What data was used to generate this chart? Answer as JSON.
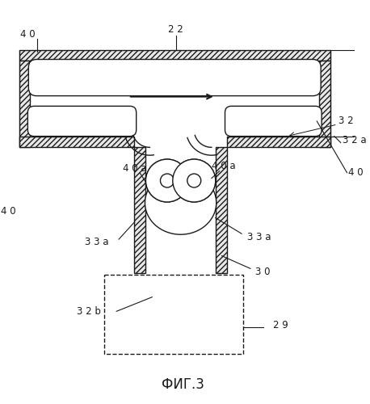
{
  "title": "ФИГ.3",
  "bg_color": "#ffffff",
  "line_color": "#1a1a1a",
  "labels": {
    "40_top_left": "4 0",
    "22": "2 2",
    "32": "3 2",
    "32a": "3 2 a",
    "40a_left": "4 0 a",
    "40a_right": "4 0 a",
    "40_right": "4 0",
    "40_left": "4 0",
    "33a_left": "3 3 a",
    "33a_right": "3 3 a",
    "30": "3 0",
    "32b": "3 2 b",
    "29": "2 9"
  },
  "figsize": [
    4.58,
    5.0
  ],
  "dpi": 100
}
